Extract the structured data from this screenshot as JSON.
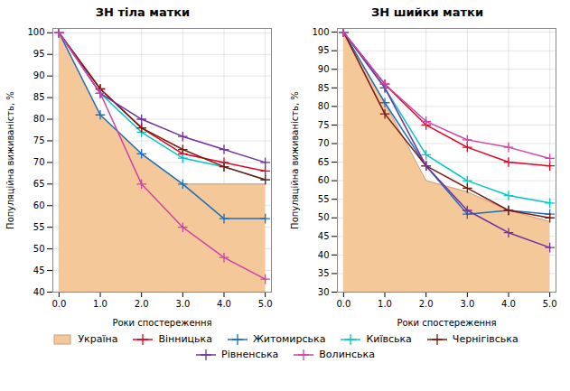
{
  "chart_data": [
    {
      "type": "line",
      "title": "ЗН тіла матки",
      "xlabel": "Роки спостереження",
      "ylabel": "Популяційна виживаність, %",
      "x": [
        0,
        1,
        2,
        3,
        4,
        5
      ],
      "xlim": [
        -0.15,
        5.15
      ],
      "xticks": [
        0,
        1,
        2,
        3,
        4,
        5
      ],
      "ylim": [
        40,
        101
      ],
      "yticks": [
        40,
        45,
        50,
        55,
        60,
        65,
        70,
        75,
        80,
        85,
        90,
        95,
        100
      ],
      "grid": true,
      "legend": "bottom",
      "series": [
        {
          "name": "Україна",
          "type": "area",
          "color": "#f5c89a",
          "values": [
            100,
            81,
            72,
            65,
            65,
            65
          ]
        },
        {
          "name": "Вінницька",
          "color": "#e8001c",
          "marker": "plus",
          "values": [
            100,
            87,
            78,
            72,
            70,
            68
          ]
        },
        {
          "name": "Житомирська",
          "color": "#1c6fbc",
          "marker": "plus",
          "values": [
            100,
            81,
            72,
            65,
            57,
            57
          ]
        },
        {
          "name": "Київська",
          "color": "#00c8c8",
          "marker": "plus",
          "values": [
            100,
            86,
            77,
            71,
            69,
            66
          ]
        },
        {
          "name": "Чернігівська",
          "color": "#7b1a10",
          "marker": "plus",
          "values": [
            100,
            87,
            78,
            73,
            69,
            66
          ]
        },
        {
          "name": "Рівненська",
          "color": "#7030a0",
          "marker": "plus",
          "values": [
            100,
            86,
            80,
            76,
            73,
            70
          ]
        },
        {
          "name": "Волинська",
          "color": "#cc44aa",
          "marker": "plus",
          "values": [
            100,
            86,
            65,
            55,
            48,
            43
          ]
        }
      ]
    },
    {
      "type": "line",
      "title": "ЗН шийки матки",
      "xlabel": "Роки спостереження",
      "ylabel": "Популяційна виживаність, %",
      "x": [
        0,
        1,
        2,
        3,
        4,
        5
      ],
      "xlim": [
        -0.15,
        5.15
      ],
      "xticks": [
        0,
        1,
        2,
        3,
        4,
        5
      ],
      "ylim": [
        30,
        101
      ],
      "yticks": [
        30,
        35,
        40,
        45,
        50,
        55,
        60,
        65,
        70,
        75,
        80,
        85,
        90,
        95,
        100
      ],
      "grid": true,
      "legend": "bottom",
      "series": [
        {
          "name": "Україна",
          "type": "area",
          "color": "#f5c89a",
          "values": [
            100,
            81,
            60,
            57,
            52,
            49
          ]
        },
        {
          "name": "Вінницька",
          "color": "#e8001c",
          "marker": "plus",
          "values": [
            100,
            86,
            75,
            69,
            65,
            64
          ]
        },
        {
          "name": "Житомирська",
          "color": "#1c6fbc",
          "marker": "plus",
          "values": [
            100,
            81,
            64,
            51,
            52,
            51
          ]
        },
        {
          "name": "Київська",
          "color": "#00c8c8",
          "marker": "plus",
          "values": [
            100,
            85,
            67,
            60,
            56,
            54
          ]
        },
        {
          "name": "Чернігівська",
          "color": "#7b1a10",
          "marker": "plus",
          "values": [
            100,
            78,
            64,
            58,
            52,
            50
          ]
        },
        {
          "name": "Рівненська",
          "color": "#7030a0",
          "marker": "plus",
          "values": [
            100,
            85,
            64,
            52,
            46,
            42
          ]
        },
        {
          "name": "Волинська",
          "color": "#cc44aa",
          "marker": "plus",
          "values": [
            100,
            86,
            76,
            71,
            69,
            66
          ]
        }
      ]
    }
  ]
}
